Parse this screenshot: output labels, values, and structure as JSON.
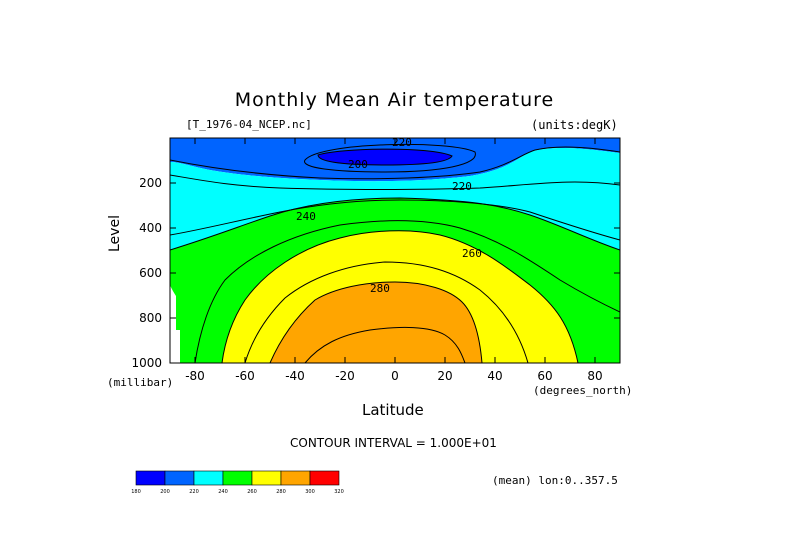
{
  "chart_data": {
    "type": "contour",
    "title": "Monthly Mean Air temperature",
    "file_label": "[T_1976-04_NCEP.nc]",
    "units_label": "(units:degK)",
    "xlabel": "Latitude",
    "x_units": "(degrees_north)",
    "ylabel": "Level",
    "y_units": "(millibar)",
    "xlim": [
      -90,
      90
    ],
    "ylim": [
      1000,
      0
    ],
    "x_ticks": [
      "-80",
      "-60",
      "-40",
      "-20",
      "0",
      "20",
      "40",
      "60",
      "80"
    ],
    "y_ticks": [
      "200",
      "400",
      "600",
      "800",
      "1000"
    ],
    "contour_interval_label": "CONTOUR INTERVAL = 1.000E+01",
    "contour_labels": [
      "220",
      "200",
      "220",
      "240",
      "260",
      "280"
    ],
    "mean_info": "(mean) lon:0..357.5",
    "colorbar": {
      "levels": [
        "180",
        "200",
        "220",
        "240",
        "260",
        "280",
        "300",
        "320"
      ],
      "colors": [
        "#0000ff",
        "#0064ff",
        "#00ffff",
        "#00ff00",
        "#ffff00",
        "#ffa500",
        "#ff0000"
      ]
    },
    "grid": false
  }
}
